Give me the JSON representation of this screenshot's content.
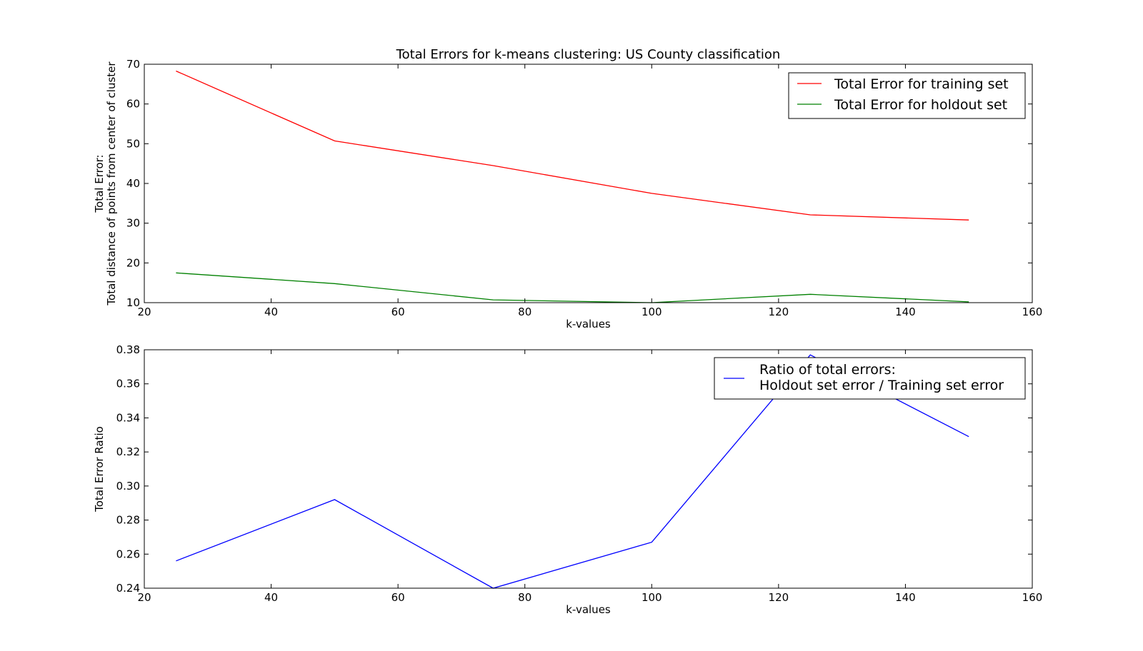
{
  "chart_data": [
    {
      "type": "line",
      "title": "Total Errors for k-means clustering: US County classification",
      "xlabel": "k-values",
      "ylabel_lines": [
        "Total Error:",
        "Total distance of points from center of cluster"
      ],
      "xlim": [
        20,
        160
      ],
      "ylim": [
        10,
        70
      ],
      "xticks": [
        "20",
        "40",
        "60",
        "80",
        "100",
        "120",
        "140",
        "160"
      ],
      "yticks": [
        "10",
        "20",
        "30",
        "40",
        "50",
        "60",
        "70"
      ],
      "x": [
        25,
        50,
        75,
        100,
        125,
        150
      ],
      "series": [
        {
          "name": "Total Error for training set",
          "color": "#ff0000",
          "values": [
            68.3,
            50.7,
            44.5,
            37.5,
            32.1,
            30.8
          ]
        },
        {
          "name": "Total Error for holdout set",
          "color": "#008000",
          "values": [
            17.5,
            14.8,
            10.7,
            10.0,
            12.1,
            10.2
          ]
        }
      ],
      "legend": "top-right",
      "grid": false
    },
    {
      "type": "line",
      "title": "",
      "xlabel": "k-values",
      "ylabel_lines": [
        "Total Error Ratio"
      ],
      "xlim": [
        20,
        160
      ],
      "ylim": [
        0.24,
        0.38
      ],
      "xticks": [
        "20",
        "40",
        "60",
        "80",
        "100",
        "120",
        "140",
        "160"
      ],
      "yticks": [
        "0.24",
        "0.26",
        "0.28",
        "0.30",
        "0.32",
        "0.34",
        "0.36",
        "0.38"
      ],
      "x": [
        25,
        50,
        75,
        100,
        125,
        150
      ],
      "series": [
        {
          "name_lines": [
            "Ratio of total errors:",
            "Holdout set error / Training set error"
          ],
          "color": "#0000ff",
          "values": [
            0.256,
            0.292,
            0.24,
            0.267,
            0.377,
            0.329
          ]
        }
      ],
      "legend": "top-right",
      "grid": false
    }
  ]
}
